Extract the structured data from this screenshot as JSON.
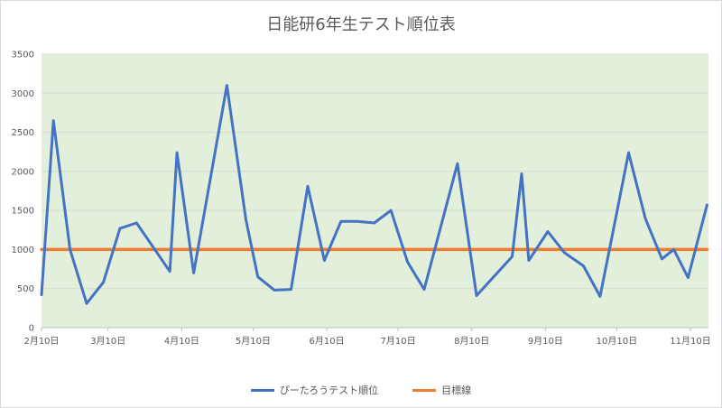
{
  "chart_data": {
    "type": "line",
    "title": "日能研6年生テスト順位表",
    "xlabel": "",
    "ylabel": "",
    "ylim": [
      0,
      3500
    ],
    "y_ticks": [
      0,
      500,
      1000,
      1500,
      2000,
      2500,
      3000,
      3500
    ],
    "x_tick_labels": [
      "2月10日",
      "3月10日",
      "4月10日",
      "5月10日",
      "6月10日",
      "7月10日",
      "8月10日",
      "9月10日",
      "10月10日",
      "11月10日"
    ],
    "x_start": "2月10日",
    "x_end": "11月10日",
    "grid": true,
    "legend_position": "bottom",
    "plot_background": "#e2efda",
    "series": [
      {
        "name": "ぴーたろうテスト順位",
        "color": "#4472c4",
        "points": [
          {
            "x": "2月10日",
            "y": 420
          },
          {
            "x": "2月15日",
            "y": 2650
          },
          {
            "x": "2月22日",
            "y": 1000
          },
          {
            "x": "3月1日",
            "y": 310
          },
          {
            "x": "3月8日",
            "y": 580
          },
          {
            "x": "3月15日",
            "y": 1270
          },
          {
            "x": "3月22日",
            "y": 1340
          },
          {
            "x": "4月5日",
            "y": 720
          },
          {
            "x": "4月8日",
            "y": 2240
          },
          {
            "x": "4月15日",
            "y": 700
          },
          {
            "x": "4月29日",
            "y": 3100
          },
          {
            "x": "5月7日",
            "y": 1380
          },
          {
            "x": "5月12日",
            "y": 650
          },
          {
            "x": "5月19日",
            "y": 480
          },
          {
            "x": "5月26日",
            "y": 490
          },
          {
            "x": "6月2日",
            "y": 1810
          },
          {
            "x": "6月9日",
            "y": 860
          },
          {
            "x": "6月16日",
            "y": 1360
          },
          {
            "x": "6月23日",
            "y": 1360
          },
          {
            "x": "6月30日",
            "y": 1340
          },
          {
            "x": "7月7日",
            "y": 1500
          },
          {
            "x": "7月14日",
            "y": 840
          },
          {
            "x": "7月21日",
            "y": 490
          },
          {
            "x": "8月4日",
            "y": 2100
          },
          {
            "x": "8月12日",
            "y": 410
          },
          {
            "x": "8月27日",
            "y": 910
          },
          {
            "x": "8月31日",
            "y": 1970
          },
          {
            "x": "9月3日",
            "y": 860
          },
          {
            "x": "9月11日",
            "y": 1230
          },
          {
            "x": "9月18日",
            "y": 960
          },
          {
            "x": "9月26日",
            "y": 790
          },
          {
            "x": "10月3日",
            "y": 400
          },
          {
            "x": "10月10日",
            "y": 1470
          },
          {
            "x": "10月15日",
            "y": 2240
          },
          {
            "x": "10月22日",
            "y": 1400
          },
          {
            "x": "10月29日",
            "y": 880
          },
          {
            "x": "11月3日",
            "y": 1000
          },
          {
            "x": "11月9日",
            "y": 640
          },
          {
            "x": "11月17日",
            "y": 1570
          }
        ]
      },
      {
        "name": "目標線",
        "color": "#ed7d31",
        "points": [
          {
            "x": "2月10日",
            "y": 1000
          },
          {
            "x": "11月17日",
            "y": 1000
          }
        ]
      }
    ]
  }
}
